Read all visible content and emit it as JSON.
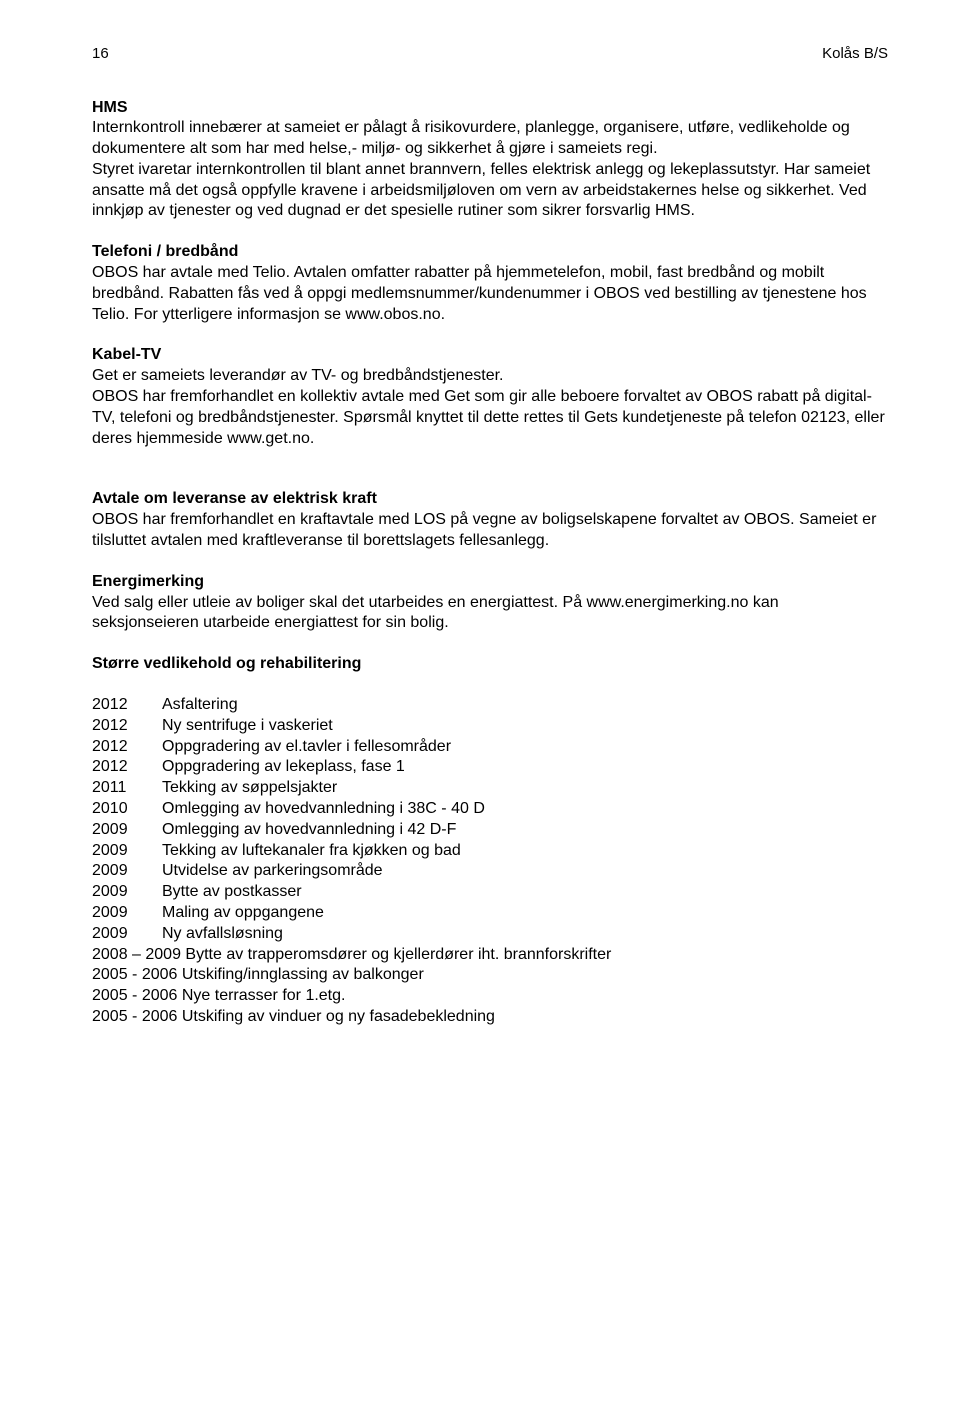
{
  "header": {
    "page_num": "16",
    "doc_title": "Kolås B/S"
  },
  "hms": {
    "heading": "HMS",
    "body": "Internkontroll innebærer at sameiet er pålagt å risikovurdere, planlegge, organisere, utføre, vedlikeholde og dokumentere alt som har med helse,- miljø- og sikkerhet å gjøre i sameiets regi.\nStyret ivaretar internkontrollen til blant annet brannvern, felles elektrisk anlegg og lekeplassutstyr. Har sameiet ansatte må det også oppfylle kravene i arbeidsmiljøloven om vern av arbeidstakernes helse og sikkerhet. Ved innkjøp av tjenester og ved dugnad er det spesielle rutiner som sikrer forsvarlig HMS."
  },
  "telefoni": {
    "heading": "Telefoni / bredbånd",
    "body": "OBOS har avtale med Telio. Avtalen omfatter rabatter på hjemmetelefon, mobil, fast bredbånd og mobilt bredbånd. Rabatten fås ved å oppgi medlemsnummer/kundenummer i OBOS ved bestilling av tjenestene hos Telio. For ytterligere informasjon se www.obos.no."
  },
  "kabel": {
    "heading": "Kabel-TV",
    "body": "Get er sameiets leverandør av TV- og bredbåndstjenester.\nOBOS har fremforhandlet en kollektiv avtale med Get som gir alle beboere forvaltet av OBOS rabatt på digital-TV, telefoni og bredbåndstjenester. Spørsmål knyttet til dette rettes til Gets kundetjeneste på telefon 02123, eller deres hjemmeside www.get.no."
  },
  "kraft": {
    "heading": "Avtale om leveranse av elektrisk kraft",
    "body": "OBOS har fremforhandlet en kraftavtale med LOS på vegne av boligselskapene forvaltet av OBOS. Sameiet er tilsluttet avtalen med kraftleveranse til borettslagets fellesanlegg."
  },
  "energi": {
    "heading": "Energimerking",
    "body": "Ved salg eller utleie av boliger skal det utarbeides en energiattest. På www.energimerking.no kan seksjonseieren utarbeide energiattest for sin bolig."
  },
  "vedlikehold": {
    "heading": "Større vedlikehold og rehabilitering",
    "rows": [
      {
        "year": "2012",
        "desc": "Asfaltering"
      },
      {
        "year": "2012",
        "desc": "Ny sentrifuge i vaskeriet"
      },
      {
        "year": "2012",
        "desc": "Oppgradering av el.tavler i fellesområder"
      },
      {
        "year": "2012",
        "desc": "Oppgradering av lekeplass, fase 1"
      },
      {
        "year": "2011",
        "desc": "Tekking av søppelsjakter"
      },
      {
        "year": "2010",
        "desc": "Omlegging av hovedvannledning i 38C - 40 D"
      },
      {
        "year": "2009",
        "desc": "Omlegging av hovedvannledning i 42 D-F"
      },
      {
        "year": "2009",
        "desc": "Tekking av luftekanaler fra kjøkken og bad"
      },
      {
        "year": "2009",
        "desc": "Utvidelse av parkeringsområde"
      },
      {
        "year": "2009",
        "desc": "Bytte av postkasser"
      },
      {
        "year": "2009",
        "desc": "Maling av oppgangene"
      },
      {
        "year": "2009",
        "desc": "Ny avfallsløsning"
      }
    ],
    "free_lines": [
      "2008 – 2009 Bytte av trapperomsdører og kjellerdører iht. brannforskrifter",
      "2005 - 2006 Utskifing/innglassing av balkonger",
      "2005 - 2006 Nye terrasser for 1.etg.",
      "2005 - 2006 Utskifing av vinduer og ny fasadebekledning"
    ]
  }
}
